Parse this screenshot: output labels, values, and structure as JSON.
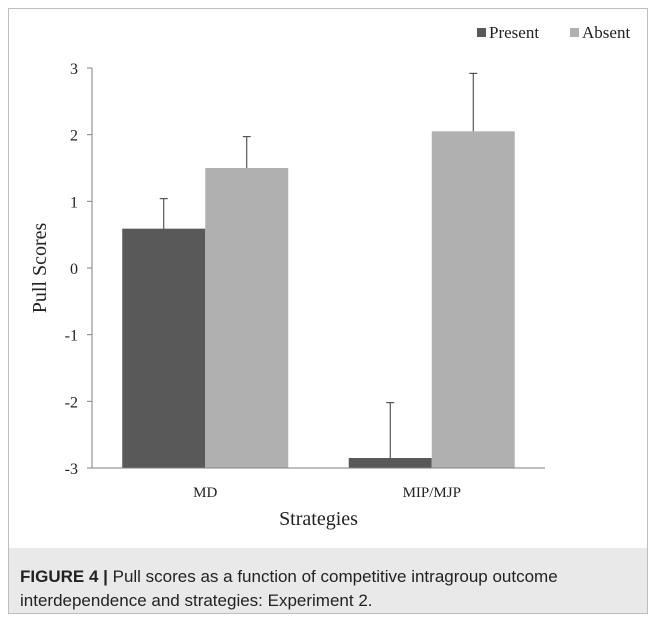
{
  "figure": {
    "label": "FIGURE 4 |",
    "caption": " Pull scores as a function of competitive intragroup outcome interdependence and strategies: Experiment 2."
  },
  "chart_data": {
    "type": "bar",
    "title": "",
    "xlabel": "Strategies",
    "ylabel": "Pull Scores",
    "categories": [
      "MD",
      "MIP/MJP"
    ],
    "ylim": [
      -3,
      3
    ],
    "yticks": [
      3,
      2,
      1,
      0,
      -1,
      -2,
      -3
    ],
    "ytick_labels": [
      "3",
      "2",
      "1",
      "0",
      "-1",
      "-2",
      "-3"
    ],
    "legend_position": "top-right",
    "grid": false,
    "series": [
      {
        "name": "Present",
        "color": "#595959",
        "values": [
          0.59,
          -2.85
        ],
        "errors": [
          0.45,
          0.83
        ]
      },
      {
        "name": "Absent",
        "color": "#b0b0b0",
        "values": [
          1.5,
          2.05
        ],
        "errors": [
          0.47,
          0.87
        ]
      }
    ]
  }
}
